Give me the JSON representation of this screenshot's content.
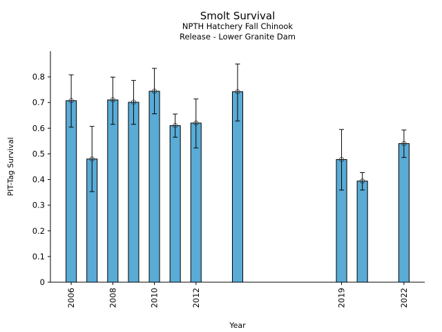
{
  "chart_data": {
    "type": "bar",
    "title": "Smolt Survival",
    "subtitle_lines": [
      "NPTH Hatchery Fall Chinook",
      "Release - Lower Granite Dam"
    ],
    "xlabel": "Year",
    "ylabel": "PIT-Tag Survival",
    "xlim": [
      2005,
      2023
    ],
    "ylim": [
      0,
      0.9
    ],
    "xticks": [
      2006,
      2008,
      2010,
      2012,
      2019,
      2022
    ],
    "xtick_labels": [
      "2006",
      "2008",
      "2010",
      "2012",
      "2019",
      "2022"
    ],
    "yticks": [
      0,
      0.1,
      0.2,
      0.3,
      0.4,
      0.5,
      0.6,
      0.7,
      0.8
    ],
    "ytick_labels": [
      "0",
      "0.1",
      "0.2",
      "0.3",
      "0.4",
      "0.5",
      "0.6",
      "0.7",
      "0.8"
    ],
    "grid": false,
    "bar_width_years": 0.5,
    "bar_color": "#5aabd6",
    "edge_color": "#000000",
    "series": [
      {
        "name": "PIT-Tag Survival",
        "x": [
          2006,
          2007,
          2008,
          2009,
          2010,
          2011,
          2012,
          2014,
          2019,
          2020,
          2022
        ],
        "values": [
          0.707,
          0.48,
          0.71,
          0.701,
          0.744,
          0.61,
          0.62,
          0.742,
          0.478,
          0.394,
          0.54
        ],
        "err_low": [
          0.604,
          0.353,
          0.615,
          0.615,
          0.656,
          0.565,
          0.523,
          0.628,
          0.359,
          0.359,
          0.486
        ],
        "err_high": [
          0.808,
          0.607,
          0.799,
          0.786,
          0.833,
          0.655,
          0.714,
          0.85,
          0.595,
          0.427,
          0.593
        ]
      }
    ]
  }
}
